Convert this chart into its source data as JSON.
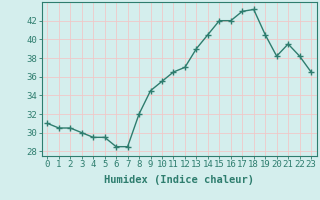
{
  "title": "",
  "xlabel": "Humidex (Indice chaleur)",
  "ylabel": "",
  "x_values": [
    0,
    1,
    2,
    3,
    4,
    5,
    6,
    7,
    8,
    9,
    10,
    11,
    12,
    13,
    14,
    15,
    16,
    17,
    18,
    19,
    20,
    21,
    22,
    23
  ],
  "y_values": [
    31,
    30.5,
    30.5,
    30,
    29.5,
    29.5,
    28.5,
    28.5,
    32,
    34.5,
    35.5,
    36.5,
    37,
    39,
    40.5,
    42,
    42,
    43,
    43.2,
    40.5,
    38.2,
    39.5,
    38.2,
    36.5
  ],
  "ylim": [
    27.5,
    44
  ],
  "yticks": [
    28,
    30,
    32,
    34,
    36,
    38,
    40,
    42
  ],
  "line_color": "#2e7d6e",
  "marker": "+",
  "marker_size": 4,
  "bg_color": "#d4eeed",
  "grid_color": "#f0c8c8",
  "axes_color": "#2e7d6e",
  "tick_fontsize": 6.5,
  "xlabel_fontsize": 7.5
}
